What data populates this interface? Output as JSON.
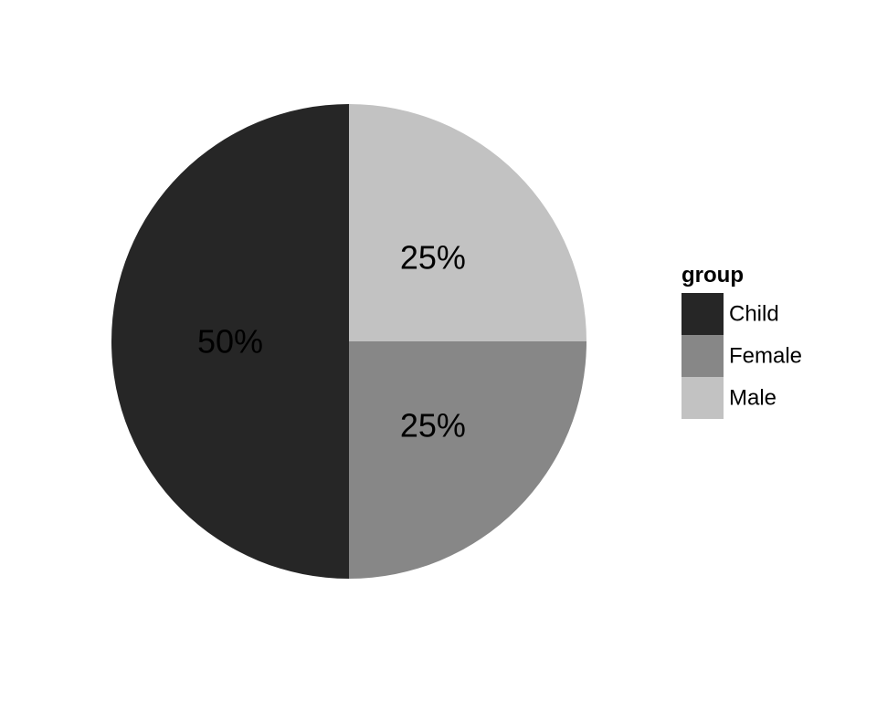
{
  "chart_data": {
    "type": "pie",
    "categories": [
      "Child",
      "Female",
      "Male"
    ],
    "values": [
      50,
      25,
      25
    ],
    "labels": [
      "50%",
      "25%",
      "25%"
    ],
    "colors": [
      "#262626",
      "#878787",
      "#c2c2c2"
    ],
    "legend": {
      "title": "group",
      "placement": "right",
      "entries": [
        "Child",
        "Female",
        "Male"
      ]
    },
    "start": "12 o'clock",
    "direction": "counterclockwise"
  }
}
